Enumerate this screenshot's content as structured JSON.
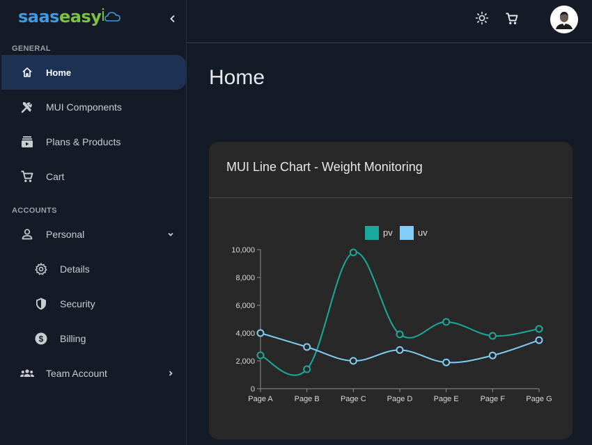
{
  "brand": {
    "saas": "saas",
    "easy": "easy"
  },
  "sidebar": {
    "general_label": "GENERAL",
    "accounts_label": "ACCOUNTS",
    "items": [
      {
        "label": "Home",
        "icon": "home-icon"
      },
      {
        "label": "MUI Components",
        "icon": "tools-icon"
      },
      {
        "label": "Plans & Products",
        "icon": "subscriptions-icon"
      },
      {
        "label": "Cart",
        "icon": "cart-icon"
      }
    ],
    "account_items": [
      {
        "label": "Personal",
        "icon": "person-icon"
      },
      {
        "label": "Details",
        "icon": "gear-icon"
      },
      {
        "label": "Security",
        "icon": "shield-icon"
      },
      {
        "label": "Billing",
        "icon": "dollar-icon"
      },
      {
        "label": "Team Account",
        "icon": "group-icon"
      }
    ]
  },
  "page": {
    "title": "Home"
  },
  "card": {
    "title": "MUI Line Chart - Weight Monitoring"
  },
  "colors": {
    "pv": "#1aa99c",
    "uv": "#81cdf5",
    "active_bg": "#1d3253"
  },
  "chart_data": {
    "type": "line",
    "categories": [
      "Page A",
      "Page B",
      "Page C",
      "Page D",
      "Page E",
      "Page F",
      "Page G"
    ],
    "series": [
      {
        "name": "pv",
        "values": [
          2400,
          1398,
          9800,
          3908,
          4800,
          3800,
          4300
        ]
      },
      {
        "name": "uv",
        "values": [
          4000,
          3000,
          2000,
          2780,
          1890,
          2390,
          3490
        ]
      }
    ],
    "ylim": [
      0,
      10000
    ],
    "yticks": [
      "0",
      "2,000",
      "4,000",
      "6,000",
      "8,000",
      "10,000"
    ],
    "legend": "top-center"
  }
}
